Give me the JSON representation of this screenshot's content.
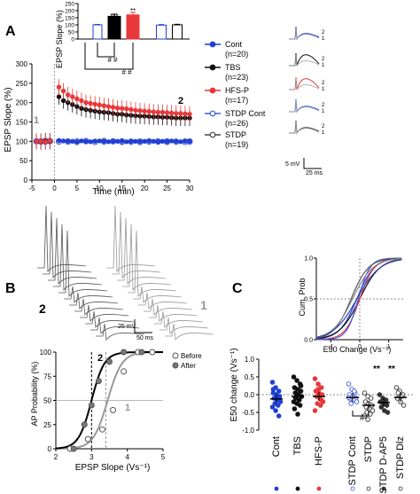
{
  "panel_labels": {
    "a": "A",
    "b": "B",
    "c": "C"
  },
  "colors": {
    "cont": "#1f3fd6",
    "tbs": "#111111",
    "hfsp": "#e8383a",
    "stdp_cont": "#3b5be0",
    "stdp": "#444444",
    "grid": "#999999"
  },
  "panel_a": {
    "inset": {
      "ylabel": "EPSP Slope (%)",
      "ylim": [
        0,
        250
      ],
      "yticks": [
        "0",
        "50",
        "100",
        "150",
        "200",
        "250"
      ],
      "stars_tbs": "***",
      "stars_hfsp": "**",
      "hash1": "# #",
      "hash2": "# #"
    },
    "main": {
      "ylabel": "EPSP Slope (%)",
      "xlabel": "Time (min)",
      "xlim": [
        -5,
        30
      ],
      "ylim": [
        0,
        300
      ],
      "xticks": [
        "-5",
        "0",
        "5",
        "10",
        "15",
        "20",
        "25",
        "30"
      ],
      "yticks": [
        "0",
        "50",
        "100",
        "150",
        "200",
        "250",
        "300"
      ],
      "mark1": "1",
      "mark2": "2"
    },
    "legend": [
      {
        "name": "Cont",
        "n": "(n=20)"
      },
      {
        "name": "TBS",
        "n": "(n=23)"
      },
      {
        "name": "HFS-P",
        "n": "(n=17)"
      },
      {
        "name": "STDP Cont",
        "n": "(n=26)"
      },
      {
        "name": "STDP",
        "n": "(n=19)"
      }
    ],
    "trace_label_2": "2",
    "trace_label_1": "1",
    "scale_v": "5 mV",
    "scale_t": "25 ms"
  },
  "panel_b": {
    "label_2": "2",
    "label_1": "1",
    "scale_v": "25 mV",
    "scale_t": "50 ms",
    "plot": {
      "ylabel": "AP Probability (%)",
      "xlabel": "EPSP Slope (Vs⁻¹)",
      "xlim": [
        2,
        5
      ],
      "ylim": [
        0,
        100
      ],
      "xticks": [
        "2",
        "3",
        "4",
        "5"
      ],
      "yticks": [
        "0",
        "25",
        "50",
        "75",
        "100"
      ],
      "legend_before": "Before",
      "legend_after": "After",
      "curve_label_2": "2",
      "curve_label_1": "1"
    }
  },
  "panel_c": {
    "cdf": {
      "ylabel": "Cum. Prob",
      "xlabel": "E50 Change (Vs⁻¹)",
      "xticks": [
        "-1",
        "0",
        "1"
      ],
      "yticks": [
        "0.0",
        "0.5",
        "1.0"
      ]
    },
    "scatter": {
      "ylabel": "E50 change (Vs⁻¹)",
      "yticks": [
        "-1.0",
        "-0.5",
        "0.0",
        "0.5",
        "1.0"
      ],
      "ylim": [
        -1.0,
        1.0
      ],
      "categories": [
        "Cont",
        "TBS",
        "HFS-P",
        "STDP Cont",
        "STDP",
        "STDP D-AP5",
        "STDP Dlz"
      ],
      "stars": "**",
      "hash": "#"
    }
  },
  "chart_data": [
    {
      "type": "bar",
      "panel": "A-inset",
      "categories": [
        "Cont",
        "TBS",
        "HFS-P",
        "STDP Cont",
        "STDP"
      ],
      "values": [
        100,
        160,
        170,
        98,
        100
      ],
      "errors": [
        3,
        15,
        18,
        4,
        4
      ],
      "ylabel": "EPSP Slope (%)",
      "ylim": [
        0,
        250
      ]
    },
    {
      "type": "line",
      "panel": "A-main",
      "xlabel": "Time (min)",
      "ylabel": "EPSP Slope (%)",
      "xlim": [
        -5,
        30
      ],
      "ylim": [
        0,
        300
      ],
      "series": [
        {
          "name": "Cont",
          "x": [
            -4,
            -3,
            -2,
            -1,
            1,
            2,
            3,
            4,
            5,
            6,
            7,
            8,
            9,
            10,
            11,
            12,
            13,
            14,
            15,
            16,
            17,
            18,
            19,
            20,
            21,
            22,
            23,
            24,
            25,
            26,
            27,
            28,
            29,
            30
          ],
          "values": [
            100,
            101,
            99,
            100,
            102,
            101,
            100,
            100,
            99,
            101,
            100,
            99,
            100,
            101,
            100,
            99,
            100,
            100,
            101,
            99,
            100,
            100,
            99,
            100,
            101,
            100,
            99,
            100,
            100,
            101,
            100,
            99,
            100,
            100
          ]
        },
        {
          "name": "TBS",
          "x": [
            -4,
            -3,
            -2,
            -1,
            1,
            2,
            3,
            4,
            5,
            6,
            7,
            8,
            9,
            10,
            11,
            12,
            13,
            14,
            15,
            16,
            17,
            18,
            19,
            20,
            21,
            22,
            23,
            24,
            25,
            26,
            27,
            28,
            29,
            30
          ],
          "values": [
            100,
            99,
            101,
            100,
            215,
            205,
            200,
            195,
            190,
            185,
            182,
            180,
            178,
            176,
            175,
            174,
            172,
            170,
            170,
            168,
            167,
            166,
            165,
            165,
            164,
            163,
            163,
            162,
            162,
            161,
            160,
            160,
            160,
            160
          ]
        },
        {
          "name": "HFS-P",
          "x": [
            -4,
            -3,
            -2,
            -1,
            1,
            2,
            3,
            4,
            5,
            6,
            7,
            8,
            9,
            10,
            11,
            12,
            13,
            14,
            15,
            16,
            17,
            18,
            19,
            20,
            21,
            22,
            23,
            24,
            25,
            26,
            27,
            28,
            29,
            30
          ],
          "values": [
            100,
            100,
            99,
            101,
            240,
            230,
            220,
            215,
            210,
            205,
            200,
            198,
            196,
            194,
            192,
            190,
            188,
            186,
            185,
            184,
            182,
            180,
            179,
            178,
            177,
            176,
            175,
            175,
            174,
            173,
            172,
            172,
            171,
            170
          ]
        },
        {
          "name": "STDP Cont",
          "x": [
            -4,
            -3,
            -2,
            -1,
            1,
            3,
            5,
            7,
            9,
            11,
            13,
            15,
            17,
            19,
            21,
            23,
            25,
            27,
            29,
            30
          ],
          "values": [
            100,
            100,
            99,
            101,
            100,
            99,
            100,
            101,
            98,
            99,
            100,
            100,
            99,
            98,
            100,
            99,
            100,
            99,
            98,
            99
          ]
        },
        {
          "name": "STDP",
          "x": [
            -4,
            -3,
            -2,
            -1,
            1,
            3,
            5,
            7,
            9,
            11,
            13,
            15,
            17,
            19,
            21,
            23,
            25,
            27,
            29,
            30
          ],
          "values": [
            100,
            99,
            101,
            100,
            99,
            100,
            98,
            100,
            99,
            101,
            100,
            98,
            99,
            100,
            99,
            100,
            98,
            99,
            100,
            100
          ]
        }
      ]
    },
    {
      "type": "line",
      "panel": "B-plot",
      "xlabel": "EPSP Slope (Vs⁻¹)",
      "ylabel": "AP Probability (%)",
      "xlim": [
        2,
        5
      ],
      "ylim": [
        0,
        100
      ],
      "series": [
        {
          "name": "Before",
          "x": [
            2.4,
            2.9,
            3.3,
            3.6,
            3.9,
            4.3,
            4.7
          ],
          "values": [
            0,
            10,
            20,
            40,
            80,
            100,
            100
          ]
        },
        {
          "name": "After",
          "x": [
            2.5,
            2.8,
            3.0,
            3.2,
            3.5,
            3.9,
            4.4
          ],
          "values": [
            0,
            25,
            45,
            70,
            90,
            100,
            100
          ]
        }
      ]
    },
    {
      "type": "scatter",
      "panel": "C-scatter",
      "ylabel": "E50 change (Vs⁻¹)",
      "ylim": [
        -1.0,
        1.0
      ],
      "categories": [
        "Cont",
        "TBS",
        "HFS-P",
        "STDP Cont",
        "STDP",
        "STDP D-AP5",
        "STDP Dlz"
      ],
      "means": [
        -0.12,
        -0.05,
        -0.05,
        -0.08,
        -0.3,
        -0.22,
        -0.08
      ],
      "points": [
        [
          0.35,
          0.2,
          0.1,
          0.05,
          0.0,
          -0.05,
          -0.1,
          -0.15,
          -0.2,
          -0.25,
          -0.3,
          -0.35,
          -0.45,
          -0.6,
          0.15,
          -0.12
        ],
        [
          0.5,
          0.4,
          0.3,
          0.2,
          0.15,
          0.1,
          0.05,
          0.0,
          -0.05,
          -0.1,
          -0.15,
          -0.2,
          -0.25,
          -0.3,
          -0.4,
          -0.55,
          0.25,
          -0.08
        ],
        [
          0.45,
          0.3,
          0.2,
          0.1,
          0.05,
          0.0,
          -0.05,
          -0.1,
          -0.2,
          -0.25,
          -0.3,
          -0.45,
          0.15,
          -0.15
        ],
        [
          0.3,
          0.15,
          0.05,
          0.0,
          -0.05,
          -0.1,
          -0.12,
          -0.15,
          -0.2,
          -0.25,
          0.1,
          -0.08
        ],
        [
          0.05,
          -0.05,
          -0.1,
          -0.2,
          -0.25,
          -0.3,
          -0.35,
          -0.4,
          -0.45,
          -0.5,
          -0.55,
          -0.6,
          -0.7
        ],
        [
          0.0,
          -0.1,
          -0.15,
          -0.2,
          -0.25,
          -0.3,
          -0.35,
          -0.45,
          -0.5
        ],
        [
          0.2,
          0.1,
          0.0,
          -0.1,
          -0.2,
          -0.3,
          0.05,
          -0.05
        ]
      ]
    }
  ]
}
